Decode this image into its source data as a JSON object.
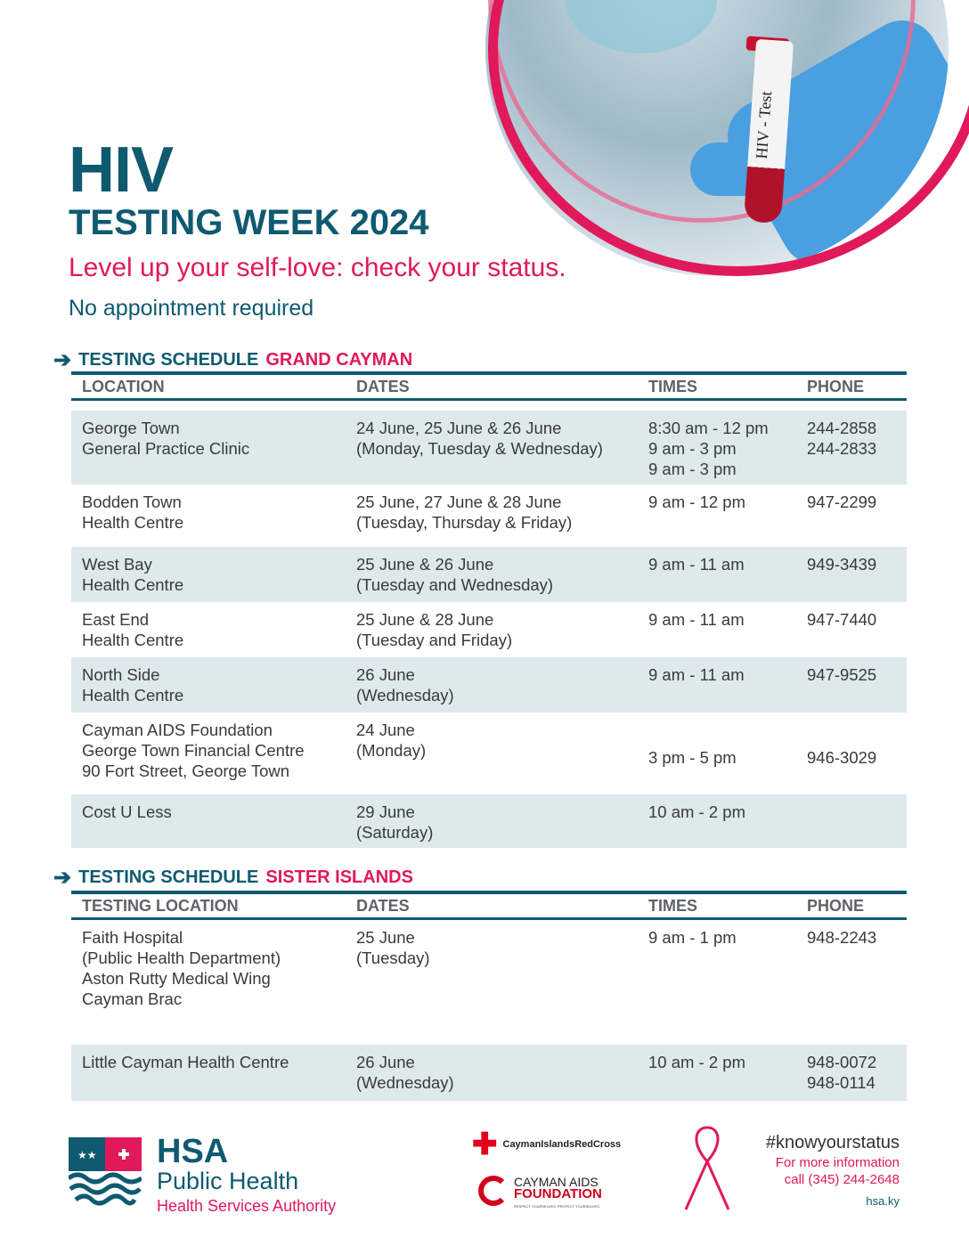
{
  "header": {
    "title": "HIV",
    "subtitle": "TESTING WEEK 2024",
    "tagline": "Level up your self-love: check your status.",
    "note": "No appointment required",
    "image_tube_label": "HIV - Test"
  },
  "grand_cayman": {
    "heading_a": "TESTING SCHEDULE",
    "heading_b": "GRAND CAYMAN",
    "columns": [
      "LOCATION",
      "DATES",
      "TIMES",
      "PHONE"
    ],
    "rows": [
      {
        "location": [
          "George Town",
          "General Practice Clinic"
        ],
        "dates": [
          "24 June, 25 June & 26 June",
          "(Monday, Tuesday & Wednesday)"
        ],
        "times": [
          "8:30 am - 12 pm",
          "9 am - 3 pm",
          "9 am - 3 pm"
        ],
        "phone": [
          "244-2858",
          "244-2833"
        ]
      },
      {
        "location": [
          "Bodden Town",
          "Health Centre"
        ],
        "dates": [
          "25 June, 27 June  & 28 June",
          "(Tuesday, Thursday & Friday)"
        ],
        "times": [
          "9 am - 12 pm"
        ],
        "phone": [
          "947-2299"
        ]
      },
      {
        "location": [
          "West Bay",
          "Health Centre"
        ],
        "dates": [
          "25 June & 26 June",
          "(Tuesday and Wednesday)"
        ],
        "times": [
          "9 am - 11 am"
        ],
        "phone": [
          "949-3439"
        ]
      },
      {
        "location": [
          "East End",
          "Health Centre"
        ],
        "dates": [
          "25 June & 28 June",
          "(Tuesday and Friday)"
        ],
        "times": [
          "9 am - 11 am"
        ],
        "phone": [
          "947-7440"
        ]
      },
      {
        "location": [
          "North Side",
          "Health Centre"
        ],
        "dates": [
          "26 June",
          "(Wednesday)"
        ],
        "times": [
          "9 am - 11 am"
        ],
        "phone": [
          "947-9525"
        ]
      },
      {
        "location": [
          "Cayman AIDS Foundation",
          "George Town Financial Centre",
          "90 Fort Street, George Town"
        ],
        "dates": [
          "24 June",
          "(Monday)"
        ],
        "times": [
          "3 pm - 5 pm"
        ],
        "phone": [
          "946-3029"
        ]
      },
      {
        "location": [
          "Cost U Less"
        ],
        "dates": [
          "29 June",
          "(Saturday)"
        ],
        "times": [
          "10 am - 2 pm"
        ],
        "phone": []
      }
    ]
  },
  "sister_islands": {
    "heading_a": "TESTING SCHEDULE",
    "heading_b": "SISTER ISLANDS",
    "columns": [
      "TESTING LOCATION",
      "DATES",
      "TIMES",
      "PHONE"
    ],
    "rows": [
      {
        "location": [
          "Faith Hospital",
          "(Public Health Department)",
          "Aston Rutty Medical Wing",
          "Cayman Brac"
        ],
        "dates": [
          "25 June",
          "(Tuesday)"
        ],
        "times": [
          "9 am - 1 pm"
        ],
        "phone": [
          "948-2243"
        ]
      },
      {
        "location": [
          "Little Cayman Health Centre"
        ],
        "dates": [
          "26 June",
          "(Wednesday)"
        ],
        "times": [
          "10 am - 2 pm"
        ],
        "phone": [
          "948-0072",
          "948-0114"
        ]
      }
    ]
  },
  "footer": {
    "hsa": "HSA",
    "public_health": "Public Health",
    "authority": "Health Services Authority",
    "red_cross": "CaymanIslandsRedCross",
    "caf_line1": "CAYMAN AIDS",
    "caf_line2": "FOUNDATION",
    "caf_tagline": "RESPECT YOURSELVES. PROTECT YOURSELVES.",
    "hashtag": "#knowyourstatus",
    "info": "For more information",
    "call": "call (345) 244-2648",
    "site": "hsa.ky"
  },
  "colors": {
    "teal": "#0f5a70",
    "pink": "#e0195a",
    "row_bg": "#dde9ed"
  }
}
